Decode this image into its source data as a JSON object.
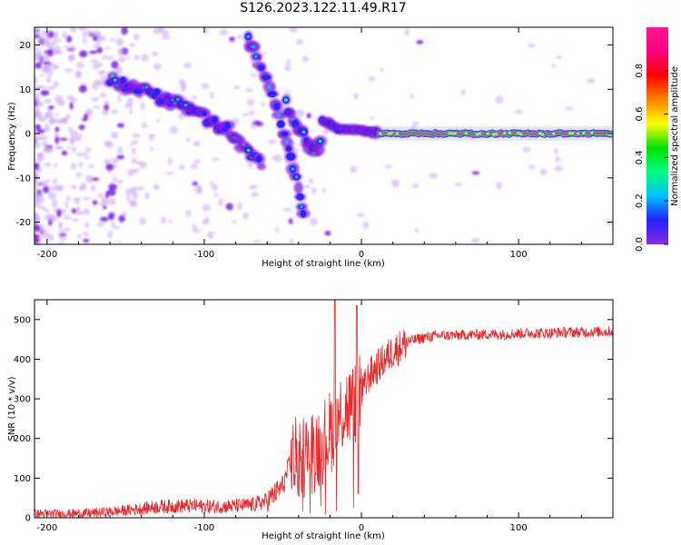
{
  "title": "S126.2023.122.11.49.R17",
  "colors": {
    "snr_line": "#e8282b",
    "spectrum_ramp": [
      "#ffffff",
      "#8a2be2",
      "#2020ff",
      "#00c0ff",
      "#00ff7f",
      "#00e000",
      "#ffff00",
      "#ff8000",
      "#ff0000",
      "#ff0080",
      "#ff1493"
    ]
  },
  "chart_data": [
    {
      "id": "spectrogram",
      "type": "heatmap",
      "xlabel": "Height of straight line (km)",
      "ylabel": "Frequency (Hz)",
      "xlim": [
        -208,
        160
      ],
      "ylim": [
        -25,
        24
      ],
      "xticks": [
        -200,
        -100,
        0,
        100
      ],
      "yticks": [
        -20,
        -10,
        0,
        10,
        20
      ],
      "colorbar": {
        "label": "Normalized spectral amplitude",
        "range": [
          0,
          1
        ],
        "ticks": [
          "0.0",
          "0.2",
          "0.4",
          "0.6",
          "0.8"
        ]
      },
      "tracks": [
        {
          "points": [
            [
              -160,
              12
            ],
            [
              -140,
              10
            ],
            [
              -120,
              7
            ],
            [
              -100,
              4
            ],
            [
              -85,
              1
            ],
            [
              -75,
              -3
            ],
            [
              -62,
              -8
            ]
          ],
          "amplitude": 0.35
        },
        {
          "points": [
            [
              -72,
              21
            ],
            [
              -62,
              14
            ],
            [
              -55,
              7
            ],
            [
              -50,
              1
            ],
            [
              -45,
              -6
            ],
            [
              -40,
              -12
            ],
            [
              -36,
              -20
            ]
          ],
          "amplitude": 0.3
        },
        {
          "points": [
            [
              -48,
              7
            ],
            [
              -42,
              3
            ],
            [
              -35,
              -2
            ],
            [
              -30,
              -4
            ],
            [
              -25,
              -1
            ]
          ],
          "amplitude": 0.35
        },
        {
          "points": [
            [
              -25,
              3
            ],
            [
              -15,
              1
            ],
            [
              -5,
              1
            ],
            [
              5,
              0.5
            ],
            [
              15,
              0
            ],
            [
              40,
              0
            ],
            [
              160,
              0
            ]
          ],
          "amplitude": 0.95
        }
      ]
    },
    {
      "id": "snr",
      "type": "line",
      "xlabel": "Height of straight line (km)",
      "ylabel": "SNR (10 * v/v)",
      "xlim": [
        -208,
        160
      ],
      "ylim": [
        0,
        550
      ],
      "xticks": [
        -200,
        -100,
        0,
        100
      ],
      "yticks": [
        0,
        100,
        200,
        300,
        400,
        500
      ],
      "series": [
        {
          "x": [
            -208,
            -190,
            -170,
            -150,
            -130,
            -110,
            -90,
            -70,
            -60,
            -50,
            -45,
            -40,
            -35,
            -30,
            -25,
            -20,
            -15,
            -10,
            -5,
            0,
            5,
            10,
            20,
            30,
            40,
            50,
            60,
            70,
            80,
            90,
            100,
            110,
            120,
            130,
            140,
            150,
            160
          ],
          "y": [
            10,
            10,
            12,
            18,
            28,
            30,
            28,
            32,
            42,
            80,
            140,
            150,
            160,
            170,
            190,
            215,
            250,
            280,
            280,
            310,
            360,
            380,
            420,
            445,
            455,
            460,
            460,
            462,
            463,
            463,
            465,
            466,
            466,
            468,
            468,
            469,
            470
          ]
        }
      ]
    }
  ]
}
